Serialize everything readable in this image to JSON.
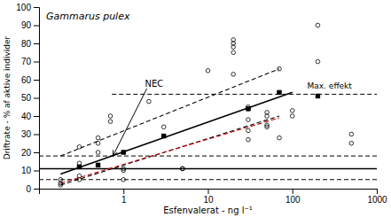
{
  "chart_data": {
    "type": "scatter",
    "title": "Gammarus pulex",
    "xlabel": "Esfenvalerat - ng l⁻¹",
    "ylabel": "Driftrate - % af aktive individer",
    "log": "x",
    "xlim": [
      0.1,
      1000
    ],
    "ylim": [
      0,
      100
    ],
    "xticks": [
      1,
      10,
      100,
      1000
    ],
    "yticks": [
      0,
      10,
      20,
      30,
      40,
      50,
      60,
      70,
      80,
      90,
      100
    ],
    "series": [
      {
        "type": "scatter",
        "marker": "circle",
        "color": "#000000",
        "x": [
          0.18,
          0.18,
          0.18,
          0.3,
          0.3,
          0.3,
          0.3,
          0.5,
          0.5,
          0.5,
          0.7,
          0.7,
          1.0,
          1.0,
          1.0,
          2.0,
          3.0,
          5.0,
          5.0,
          10.0,
          20.0,
          20.0,
          20.0,
          20.0,
          20.0,
          30.0,
          30.0,
          30.0,
          30.0,
          30.0,
          50.0,
          50.0,
          50.0,
          50.0,
          70.0,
          70.0,
          100.0,
          100.0,
          200.0,
          200.0,
          500.0,
          500.0
        ],
        "values": [
          3,
          5,
          2,
          14,
          23,
          5,
          7,
          20,
          25,
          28,
          40,
          37,
          10,
          5,
          11,
          48,
          34,
          11,
          11,
          65,
          78,
          80,
          75,
          82,
          63,
          44,
          45,
          38,
          32,
          27,
          34,
          42,
          40,
          35,
          66,
          28,
          43,
          40,
          90,
          70,
          30,
          25
        ]
      },
      {
        "type": "scatter",
        "marker": "square",
        "color": "#000000",
        "x": [
          0.3,
          0.5,
          1.0,
          3.0,
          30.0,
          70.0,
          200.0
        ],
        "values": [
          12,
          13,
          20,
          29,
          44,
          53,
          51
        ]
      },
      {
        "type": "line",
        "line_style": "solid",
        "color": "#000000",
        "x": [
          0.18,
          100
        ],
        "values": [
          8,
          53
        ]
      },
      {
        "type": "line",
        "line_style": "dashed",
        "color": "#000000",
        "x": [
          0.18,
          70
        ],
        "values": [
          18,
          66
        ]
      },
      {
        "type": "line",
        "line_style": "dashed",
        "color": "#000000",
        "x": [
          0.18,
          70
        ],
        "values": [
          2,
          40
        ]
      },
      {
        "type": "line",
        "line_style": "dashed",
        "color": "#cc0000",
        "x": [
          0.18,
          70
        ],
        "values": [
          3,
          39
        ]
      }
    ],
    "reference_lines": [
      {
        "y": 18,
        "line_style": "dashed",
        "color": "#000000"
      },
      {
        "y": 5,
        "line_style": "dashed",
        "color": "#000000"
      },
      {
        "y": 11,
        "line_style": "solid",
        "color": "#000000"
      },
      {
        "y": 52,
        "x_start": 0.73,
        "line_style": "dashed",
        "color": "#000000"
      }
    ],
    "annotations": [
      {
        "text": "NEC",
        "x": 1.8,
        "y": 58,
        "arrow_x": 0.75,
        "arrow_y": 18
      },
      {
        "text": "Max. effekt",
        "x": 150,
        "y": 54
      }
    ]
  }
}
